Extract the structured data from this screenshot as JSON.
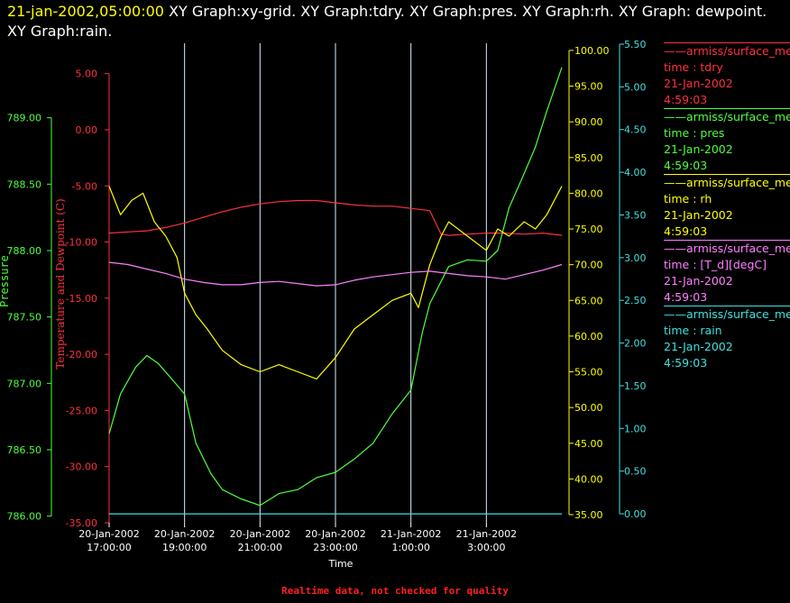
{
  "header": {
    "timestamp": "21-jan-2002,05:00:00",
    "titles": "XY Graph:xy-grid.  XY Graph:tdry.  XY Graph:pres.  XY Graph:rh.  XY Graph: dewpoint.  XY Graph:rain."
  },
  "footer": {
    "note": "Realtime data, not checked for quality"
  },
  "legend": [
    {
      "source": "——armiss/surface_me",
      "var": "time : tdry",
      "date": "21-Jan-2002",
      "time": "4:59:03",
      "color": "#ff3040"
    },
    {
      "source": "——armiss/surface_me",
      "var": "time : pres",
      "date": "21-Jan-2002",
      "time": "4:59:03",
      "color": "#50ff40"
    },
    {
      "source": "——armiss/surface_me",
      "var": "time : rh",
      "date": "21-Jan-2002",
      "time": "4:59:03",
      "color": "#ffff00"
    },
    {
      "source": "——armiss/surface_me",
      "var": "time : [T_d][degC]",
      "date": "21-Jan-2002",
      "time": "4:59:03",
      "color": "#ff80ff"
    },
    {
      "source": "——armiss/surface_me",
      "var": "time : rain",
      "date": "21-Jan-2002",
      "time": "4:59:03",
      "color": "#40e0e0"
    }
  ],
  "chart_data": {
    "type": "line",
    "xlabel": "Time",
    "x_ticks": [
      [
        "20-Jan-2002",
        "17:00:00"
      ],
      [
        "20-Jan-2002",
        "19:00:00"
      ],
      [
        "20-Jan-2002",
        "21:00:00"
      ],
      [
        "20-Jan-2002",
        "23:00:00"
      ],
      [
        "21-Jan-2002",
        "1:00:00"
      ],
      [
        "21-Jan-2002",
        "3:00:00"
      ]
    ],
    "x_hours": [
      17,
      19,
      21,
      23,
      25,
      27
    ],
    "x_range_hours": [
      17,
      29
    ],
    "axes": {
      "pressure": {
        "label": "Pressure",
        "color": "#50ff40",
        "range": [
          785.95,
          789.5
        ],
        "ticks": [
          "786.00",
          "786.50",
          "787.00",
          "787.50",
          "788.00",
          "788.50",
          "789.00"
        ],
        "tick_values": [
          786.0,
          786.5,
          787.0,
          787.5,
          788.0,
          788.5,
          789.0
        ]
      },
      "temperature": {
        "label": "Temperature and Dewpoint (C)",
        "color": "#ff3040",
        "range": [
          -35,
          6.5
        ],
        "ticks": [
          "5.00",
          "0.00",
          "-5.00",
          "-10.00",
          "-15.00",
          "-20.00",
          "-25.00",
          "-30.00",
          "-35.00"
        ],
        "tick_values": [
          5,
          0,
          -5,
          -10,
          -15,
          -20,
          -25,
          -30,
          -35
        ]
      },
      "rh": {
        "label": "",
        "color": "#ffff00",
        "range": [
          35,
          101
        ],
        "ticks": [
          "100.00",
          "95.00",
          "90.00",
          "85.00",
          "80.00",
          "75.00",
          "70.00",
          "65.00",
          "60.00",
          "55.00",
          "50.00",
          "45.00",
          "40.00",
          "35.00"
        ],
        "tick_values": [
          100,
          95,
          90,
          85,
          80,
          75,
          70,
          65,
          60,
          55,
          50,
          45,
          40,
          35
        ]
      },
      "rain": {
        "label": "",
        "color": "#40e0e0",
        "range": [
          -0.01,
          5.5
        ],
        "ticks": [
          "5.50",
          "5.00",
          "4.50",
          "4.00",
          "3.50",
          "3.00",
          "2.50",
          "2.00",
          "1.50",
          "1.00",
          "0.50",
          "0.00"
        ],
        "tick_values": [
          5.5,
          5.0,
          4.5,
          4.0,
          3.5,
          3.0,
          2.5,
          2.0,
          1.5,
          1.0,
          0.5,
          0.0
        ]
      }
    },
    "grid": "vertical lines at x ticks",
    "series": [
      {
        "name": "tdry",
        "axis": "temperature",
        "color": "#ff3040",
        "x": [
          17,
          17.5,
          18,
          18.5,
          19,
          19.5,
          20,
          20.5,
          21,
          21.5,
          22,
          22.5,
          23,
          23.5,
          24,
          24.5,
          25,
          25.5,
          25.8,
          26,
          26.5,
          27,
          27.5,
          28,
          28.5,
          29
        ],
        "y": [
          -9.2,
          -9.1,
          -9.0,
          -8.7,
          -8.3,
          -7.8,
          -7.3,
          -6.9,
          -6.6,
          -6.4,
          -6.3,
          -6.3,
          -6.5,
          -6.7,
          -6.8,
          -6.8,
          -7.0,
          -7.2,
          -9.3,
          -9.4,
          -9.3,
          -9.2,
          -9.2,
          -9.3,
          -9.2,
          -9.4
        ]
      },
      {
        "name": "pres",
        "axis": "pressure",
        "color": "#50ff40",
        "x": [
          17,
          17.3,
          17.7,
          18,
          18.3,
          18.7,
          19,
          19.3,
          19.7,
          20,
          20.5,
          21,
          21.5,
          22,
          22.5,
          23,
          23.5,
          24,
          24.5,
          25,
          25.3,
          25.5,
          26,
          26.5,
          27,
          27.3,
          27.6,
          28,
          28.3,
          28.6,
          29
        ],
        "y": [
          786.62,
          786.92,
          787.12,
          787.21,
          787.15,
          787.02,
          786.92,
          786.55,
          786.32,
          786.2,
          786.13,
          786.08,
          786.17,
          786.2,
          786.29,
          786.33,
          786.43,
          786.55,
          786.77,
          786.95,
          787.38,
          787.6,
          787.88,
          787.93,
          787.92,
          788.0,
          788.32,
          788.58,
          788.78,
          789.05,
          789.38
        ]
      },
      {
        "name": "rh",
        "axis": "rh",
        "color": "#ffff00",
        "x": [
          17,
          17.3,
          17.6,
          17.9,
          18.2,
          18.5,
          18.8,
          19,
          19.3,
          19.6,
          20,
          20.5,
          21,
          21.5,
          22,
          22.5,
          23,
          23.5,
          24,
          24.5,
          25,
          25.2,
          25.5,
          25.8,
          26,
          26.5,
          27,
          27.3,
          27.6,
          28,
          28.3,
          28.6,
          29
        ],
        "y": [
          81,
          77,
          79,
          80,
          76,
          74,
          71,
          66,
          63,
          61,
          58,
          56,
          55,
          56,
          55,
          54,
          57,
          61,
          63,
          65,
          66,
          64,
          70,
          74,
          76,
          74,
          72,
          75,
          74,
          76,
          75,
          77,
          81
        ]
      },
      {
        "name": "dewpoint",
        "axis": "temperature",
        "color": "#ff80ff",
        "x": [
          17,
          17.5,
          18,
          18.5,
          19,
          19.5,
          20,
          20.5,
          21,
          21.5,
          22,
          22.5,
          23,
          23.5,
          24,
          24.5,
          25,
          25.5,
          26,
          26.5,
          27,
          27.5,
          28,
          28.5,
          29
        ],
        "y": [
          -11.8,
          -12.0,
          -12.4,
          -12.8,
          -13.3,
          -13.6,
          -13.8,
          -13.8,
          -13.6,
          -13.5,
          -13.7,
          -13.9,
          -13.8,
          -13.4,
          -13.1,
          -12.9,
          -12.7,
          -12.6,
          -12.8,
          -13.0,
          -13.1,
          -13.3,
          -12.9,
          -12.5,
          -12.0
        ]
      },
      {
        "name": "rain",
        "axis": "rain",
        "color": "#40e0e0",
        "x": [
          17,
          29
        ],
        "y": [
          0,
          0
        ]
      }
    ]
  }
}
